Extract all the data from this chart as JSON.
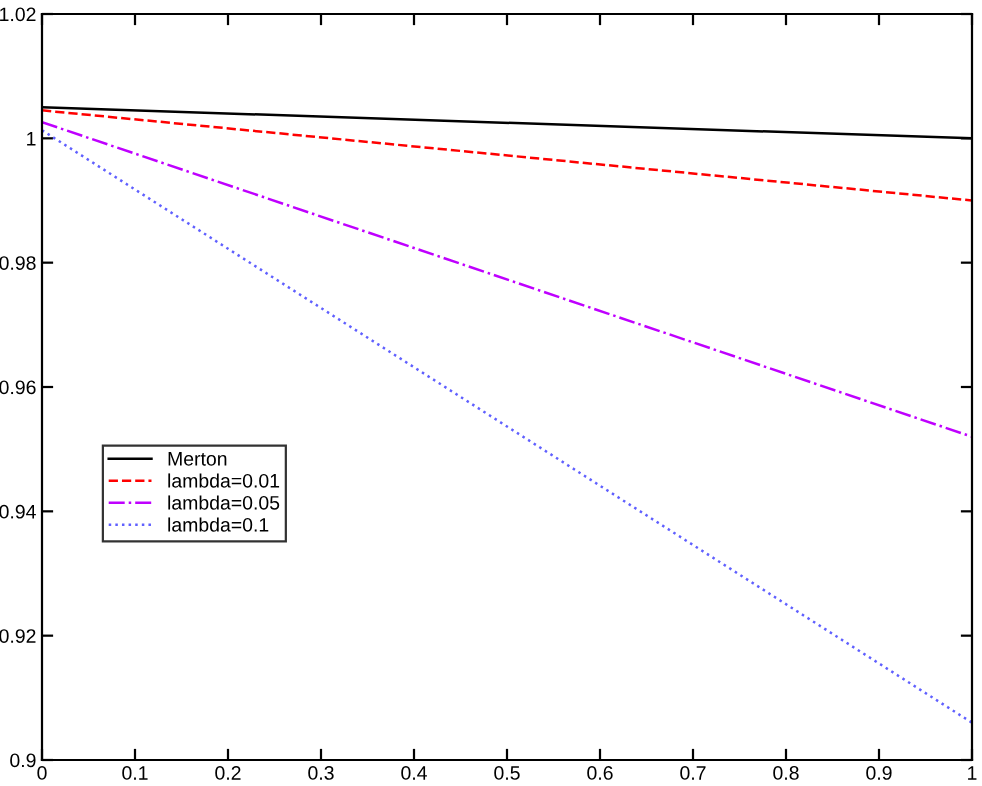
{
  "chart_data": {
    "type": "line",
    "xlim": [
      0,
      1
    ],
    "ylim": [
      0.9,
      1.02
    ],
    "xticks": [
      0,
      0.1,
      0.2,
      0.3,
      0.4,
      0.5,
      0.6,
      0.7,
      0.8,
      0.9,
      1
    ],
    "yticks": [
      0.9,
      0.92,
      0.94,
      0.96,
      0.98,
      1,
      1.02
    ],
    "x": [
      0,
      1
    ],
    "series": [
      {
        "name": "Merton",
        "color": "#000000",
        "line_style": "solid",
        "values": [
          1.005,
          1.0
        ]
      },
      {
        "name": "lambda=0.01",
        "color": "#ff0000",
        "line_style": "dashed",
        "values": [
          1.0045,
          0.99
        ]
      },
      {
        "name": "lambda=0.05",
        "color": "#bf00ff",
        "line_style": "dashdot",
        "values": [
          1.0026,
          0.952
        ]
      },
      {
        "name": "lambda=0.1",
        "color": "#6060ff",
        "line_style": "dotted",
        "values": [
          1.0013,
          0.906
        ]
      }
    ],
    "grid": false,
    "legend": "bottom left",
    "marker": "none"
  }
}
